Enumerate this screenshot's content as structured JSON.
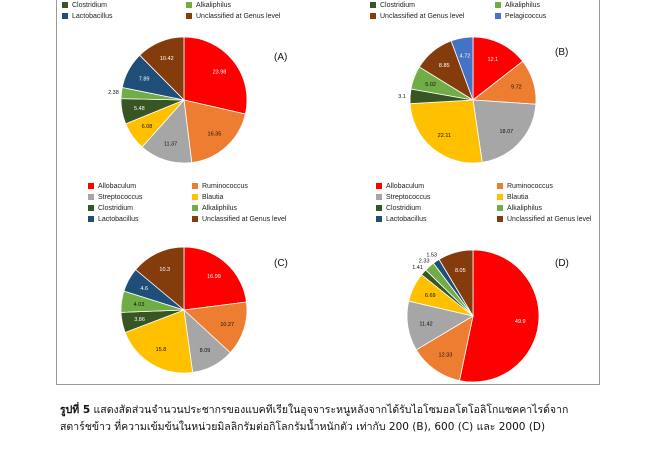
{
  "categories": {
    "Allobaculum": {
      "label": "Allobaculum",
      "color": "#ff0000"
    },
    "Ruminococcus": {
      "label": "Ruminococcus",
      "color": "#ed7d31"
    },
    "Streptococcus": {
      "label": "Streptococcus",
      "color": "#a6a6a6"
    },
    "Blautia": {
      "label": "Blautia",
      "color": "#ffc000"
    },
    "Clostridium": {
      "label": "Clostridium",
      "color": "#375623"
    },
    "Alkaliphilus": {
      "label": "Alkaliphilus",
      "color": "#70ad47"
    },
    "Lactobacillus": {
      "label": "Lactobacillus",
      "color": "#1f4e79"
    },
    "Unclassified": {
      "label": "Unclassified at Genus level",
      "color": "#843c0c"
    },
    "Pelagicoccus": {
      "label": "Pelagicoccus",
      "color": "#4472c4"
    }
  },
  "legends": {
    "A": [
      [
        "Clostridium",
        "Alkaliphilus"
      ],
      [
        "Lactobacillus",
        "Unclassified"
      ]
    ],
    "B": [
      [
        "Clostridium",
        "Alkaliphilus"
      ],
      [
        "Unclassified",
        "Pelagicoccus"
      ]
    ],
    "C": [
      [
        "Allobaculum",
        "Ruminococcus"
      ],
      [
        "Streptococcus",
        "Blautia"
      ],
      [
        "Clostridium",
        "Alkaliphilus"
      ],
      [
        "Lactobacillus",
        "Unclassified"
      ]
    ],
    "D": [
      [
        "Allobaculum",
        "Ruminococcus"
      ],
      [
        "Streptococcus",
        "Blautia"
      ],
      [
        "Clostridium",
        "Alkaliphilus"
      ],
      [
        "Lactobacillus",
        "Unclassified"
      ]
    ]
  },
  "chart_data": [
    {
      "type": "pie",
      "panel": "(A)",
      "slices": [
        {
          "category": "Allobaculum",
          "value": "23.98"
        },
        {
          "category": "Ruminococcus",
          "value": "16.35"
        },
        {
          "category": "Streptococcus",
          "value": "11.37"
        },
        {
          "category": "Blautia",
          "value": "6.08"
        },
        {
          "category": "Clostridium",
          "value": "5.48"
        },
        {
          "category": "Alkaliphilus",
          "value": "2.38"
        },
        {
          "category": "Lactobacillus",
          "value": "7.89"
        },
        {
          "category": "Unclassified",
          "value": "10.42"
        }
      ]
    },
    {
      "type": "pie",
      "panel": "(B)",
      "slices": [
        {
          "category": "Allobaculum",
          "value": "12.1"
        },
        {
          "category": "Ruminococcus",
          "value": "9.72"
        },
        {
          "category": "Streptococcus",
          "value": "18.07"
        },
        {
          "category": "Blautia",
          "value": "22.11"
        },
        {
          "category": "Clostridium",
          "value": "3.1"
        },
        {
          "category": "Alkaliphilus",
          "value": "5.02"
        },
        {
          "category": "Unclassified",
          "value": "8.85"
        },
        {
          "category": "Pelagicoccus",
          "value": "4.72"
        }
      ]
    },
    {
      "type": "pie",
      "panel": "(C)",
      "slices": [
        {
          "category": "Allobaculum",
          "value": "16.99"
        },
        {
          "category": "Ruminococcus",
          "value": "10.27"
        },
        {
          "category": "Streptococcus",
          "value": "8.09"
        },
        {
          "category": "Blautia",
          "value": "15.8"
        },
        {
          "category": "Clostridium",
          "value": "3.86"
        },
        {
          "category": "Alkaliphilus",
          "value": "4.03"
        },
        {
          "category": "Lactobacillus",
          "value": "4.6"
        },
        {
          "category": "Unclassified",
          "value": "10.3"
        }
      ]
    },
    {
      "type": "pie",
      "panel": "(D)",
      "slices": [
        {
          "category": "Allobaculum",
          "value": "49.9"
        },
        {
          "category": "Ruminococcus",
          "value": "12.33"
        },
        {
          "category": "Streptococcus",
          "value": "11.42"
        },
        {
          "category": "Blautia",
          "value": "6.69"
        },
        {
          "category": "Clostridium",
          "value": "1.41"
        },
        {
          "category": "Alkaliphilus",
          "value": "2.33"
        },
        {
          "category": "Lactobacillus",
          "value": "1.53"
        },
        {
          "category": "Unclassified",
          "value": "8.05"
        }
      ]
    }
  ],
  "caption": {
    "label": "รูปที่ 5",
    "line1": " แสดงสัดส่วนจำนวนประชากรของแบคทีเรียในอุจจาระหนูหลังจากได้รับไอโซมอลโตโอลิโกแซคคาไรด์จาก",
    "line2": "สตาร์ชข้าว ที่ความเข้มข้นในหน่วยมิลลิกรัมต่อกิโลกรัมน้ำหนักตัว เท่ากับ 200 (B), 600 (C) และ 2000 (D)"
  }
}
